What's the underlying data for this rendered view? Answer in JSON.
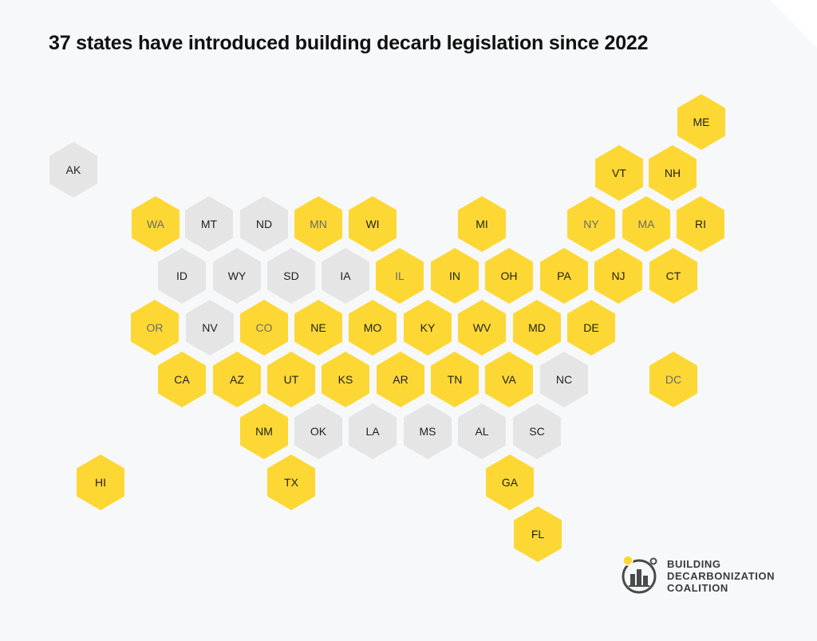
{
  "title": "37 states have introduced building decarb legislation since 2022",
  "colors": {
    "introduced": "#fdd835",
    "not_introduced": "#e5e5e5",
    "background": "#f7f8fa"
  },
  "states": [
    {
      "abbr": "ME",
      "introduced": true,
      "muted": false
    },
    {
      "abbr": "AK",
      "introduced": false,
      "muted": false
    },
    {
      "abbr": "VT",
      "introduced": true,
      "muted": false
    },
    {
      "abbr": "NH",
      "introduced": true,
      "muted": false
    },
    {
      "abbr": "WA",
      "introduced": true,
      "muted": true
    },
    {
      "abbr": "MT",
      "introduced": false,
      "muted": false
    },
    {
      "abbr": "ND",
      "introduced": false,
      "muted": false
    },
    {
      "abbr": "MN",
      "introduced": true,
      "muted": true
    },
    {
      "abbr": "WI",
      "introduced": true,
      "muted": false
    },
    {
      "abbr": "MI",
      "introduced": true,
      "muted": false
    },
    {
      "abbr": "NY",
      "introduced": true,
      "muted": true
    },
    {
      "abbr": "MA",
      "introduced": true,
      "muted": true
    },
    {
      "abbr": "RI",
      "introduced": true,
      "muted": false
    },
    {
      "abbr": "ID",
      "introduced": false,
      "muted": false
    },
    {
      "abbr": "WY",
      "introduced": false,
      "muted": false
    },
    {
      "abbr": "SD",
      "introduced": false,
      "muted": false
    },
    {
      "abbr": "IA",
      "introduced": false,
      "muted": false
    },
    {
      "abbr": "IL",
      "introduced": true,
      "muted": true
    },
    {
      "abbr": "IN",
      "introduced": true,
      "muted": false
    },
    {
      "abbr": "OH",
      "introduced": true,
      "muted": false
    },
    {
      "abbr": "PA",
      "introduced": true,
      "muted": false
    },
    {
      "abbr": "NJ",
      "introduced": true,
      "muted": false
    },
    {
      "abbr": "CT",
      "introduced": true,
      "muted": false
    },
    {
      "abbr": "OR",
      "introduced": true,
      "muted": true
    },
    {
      "abbr": "NV",
      "introduced": false,
      "muted": false
    },
    {
      "abbr": "CO",
      "introduced": true,
      "muted": true
    },
    {
      "abbr": "NE",
      "introduced": true,
      "muted": false
    },
    {
      "abbr": "MO",
      "introduced": true,
      "muted": false
    },
    {
      "abbr": "KY",
      "introduced": true,
      "muted": false
    },
    {
      "abbr": "WV",
      "introduced": true,
      "muted": false
    },
    {
      "abbr": "MD",
      "introduced": true,
      "muted": false
    },
    {
      "abbr": "DE",
      "introduced": true,
      "muted": false
    },
    {
      "abbr": "CA",
      "introduced": true,
      "muted": false
    },
    {
      "abbr": "AZ",
      "introduced": true,
      "muted": false
    },
    {
      "abbr": "UT",
      "introduced": true,
      "muted": false
    },
    {
      "abbr": "KS",
      "introduced": true,
      "muted": false
    },
    {
      "abbr": "AR",
      "introduced": true,
      "muted": false
    },
    {
      "abbr": "TN",
      "introduced": true,
      "muted": false
    },
    {
      "abbr": "VA",
      "introduced": true,
      "muted": false
    },
    {
      "abbr": "NC",
      "introduced": false,
      "muted": false
    },
    {
      "abbr": "DC",
      "introduced": true,
      "muted": true
    },
    {
      "abbr": "NM",
      "introduced": true,
      "muted": false
    },
    {
      "abbr": "OK",
      "introduced": false,
      "muted": false
    },
    {
      "abbr": "LA",
      "introduced": false,
      "muted": false
    },
    {
      "abbr": "MS",
      "introduced": false,
      "muted": false
    },
    {
      "abbr": "AL",
      "introduced": false,
      "muted": false
    },
    {
      "abbr": "SC",
      "introduced": false,
      "muted": false
    },
    {
      "abbr": "HI",
      "introduced": true,
      "muted": false
    },
    {
      "abbr": "TX",
      "introduced": true,
      "muted": false
    },
    {
      "abbr": "GA",
      "introduced": true,
      "muted": false
    },
    {
      "abbr": "FL",
      "introduced": true,
      "muted": false
    }
  ],
  "logo": {
    "line1": "BUILDING",
    "line2": "DECARBONIZATION",
    "line3": "COALITION",
    "icon": "building-decarb-logo-icon"
  }
}
